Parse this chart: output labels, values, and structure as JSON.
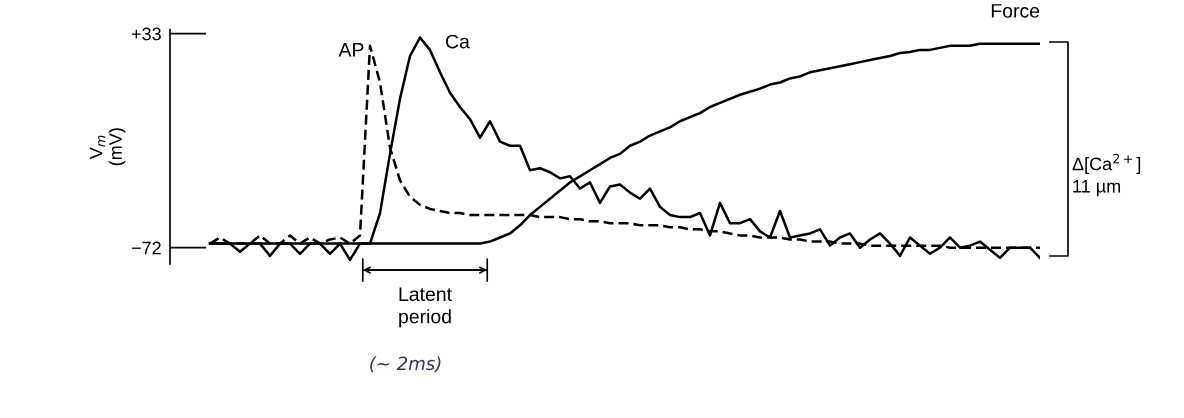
{
  "chart_data": {
    "type": "line",
    "ylabel": "V$_{m}$\n(mV)",
    "categories": [
      null,
      null,
      null,
      null,
      null,
      null,
      null,
      null,
      null,
      null,
      null,
      null,
      null,
      null,
      null,
      null,
      null,
      null,
      null,
      null,
      null,
      null,
      null,
      null,
      null,
      null,
      null,
      null,
      null,
      null,
      null,
      null,
      null,
      null,
      null,
      null,
      null,
      null,
      null,
      null,
      null,
      null,
      null,
      null,
      null,
      null,
      null,
      null,
      null,
      null,
      null,
      null,
      null,
      null,
      null,
      null,
      null,
      null,
      null,
      null,
      null,
      null,
      null,
      null,
      null,
      null,
      null,
      null,
      null,
      null,
      null,
      null,
      null,
      null,
      null,
      null,
      null,
      null,
      null,
      null,
      null,
      null,
      null,
      null
    ],
    "ylim": [
      -80,
      35
    ],
    "yticks": [
      {
        "value": 33,
        "label": "+33"
      },
      {
        "value": -72,
        "label": "−72"
      }
    ],
    "tick_labels": "y",
    "grid": false,
    "legend": false,
    "series": [
      {
        "name": "AP",
        "color": "#000000",
        "line_style": "dashed",
        "values": [
          -70,
          -67,
          -70,
          -70,
          -70,
          -66,
          -70,
          -70,
          -66,
          -70,
          -67,
          -70,
          -68,
          -67,
          -70,
          -66,
          27,
          9,
          -23,
          -39,
          -47,
          -51,
          -53,
          -54,
          -55,
          -55,
          -56,
          -56,
          -56,
          -56,
          -56,
          -56,
          -56,
          -57,
          -57,
          -57,
          -58,
          -58,
          -59,
          -59,
          -60,
          -60,
          -60,
          -61,
          -61,
          -61,
          -62,
          -62,
          -63,
          -63,
          -64,
          -64,
          -65,
          -66,
          -66,
          -67,
          -67,
          -67,
          -68,
          -68,
          -69,
          -69,
          -69,
          -70,
          -70,
          -70,
          -71,
          -71,
          -71,
          -71,
          -71,
          -71,
          -71,
          -71,
          -72,
          -72,
          -72,
          -72,
          -72,
          -72,
          -72,
          -72,
          -72,
          -72
        ]
      },
      {
        "name": "Ca",
        "color": "#000000",
        "line_style": "solid",
        "values": [
          -70,
          -70,
          -70,
          -74,
          -70,
          -70,
          -76,
          -70,
          -70,
          -75,
          -70,
          -70,
          -75,
          -70,
          -78,
          -70,
          -70,
          -55,
          -26,
          1,
          22,
          31,
          25,
          14,
          4,
          -3,
          -9,
          -18,
          -10,
          -20,
          -22,
          -22,
          -34,
          -33,
          -35,
          -38,
          -37,
          -43,
          -40,
          -50,
          -42,
          -41,
          -45,
          -48,
          -43,
          -52,
          -56,
          -57,
          -57,
          -55,
          -66,
          -50,
          -60,
          -60,
          -58,
          -64,
          -67,
          -54,
          -67,
          -66,
          -65,
          -63,
          -71,
          -67,
          -65,
          -72,
          -68,
          -65,
          -70,
          -76,
          -67,
          -71,
          -75,
          -72,
          -67,
          -72,
          -71,
          -69,
          -73,
          -77,
          -72,
          -72,
          -72,
          -77
        ]
      },
      {
        "name": "Force",
        "color": "#000000",
        "line_style": "solid",
        "values": [
          -70,
          -70,
          -70,
          -70,
          -70,
          -70,
          -70,
          -70,
          -70,
          -70,
          -70,
          -70,
          -70,
          -70,
          -70,
          -70,
          -70,
          -70,
          -70,
          -70,
          -70,
          -70,
          -70,
          -70,
          -70,
          -70,
          -70,
          -70,
          -69,
          -67,
          -65,
          -61,
          -56,
          -52,
          -48,
          -44,
          -40,
          -37,
          -34,
          -31,
          -28,
          -26,
          -22,
          -20,
          -17,
          -15,
          -13,
          -10,
          -8,
          -6,
          -3,
          -1,
          1,
          3,
          4.5,
          6,
          8,
          9,
          11,
          12,
          14,
          15,
          16,
          17,
          18,
          19,
          20,
          21,
          22,
          23.5,
          24,
          25,
          25,
          26,
          27,
          27,
          27,
          28,
          28,
          28,
          28,
          28,
          28,
          28
        ]
      }
    ],
    "annotations": [
      "Latent period",
      "(∼ 2ms)",
      "Δ[Ca$^{2+}$]\n11 µm"
    ]
  }
}
